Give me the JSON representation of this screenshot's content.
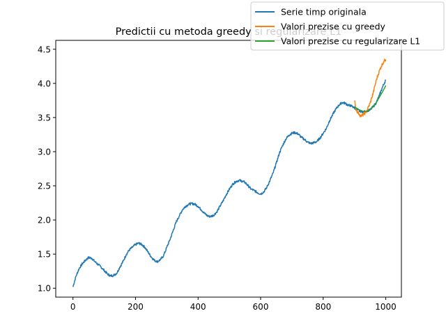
{
  "chart_data": {
    "type": "line",
    "title": "Predictii cu metoda greedy si regularizare L1",
    "xlabel": "",
    "ylabel": "",
    "xlim": [
      -55,
      1050
    ],
    "ylim": [
      0.87,
      4.63
    ],
    "x_ticks": [
      0,
      200,
      400,
      600,
      800,
      1000
    ],
    "y_ticks": [
      1.0,
      1.5,
      2.0,
      2.5,
      3.0,
      3.5,
      4.0,
      4.5
    ],
    "x_tick_labels": [
      "0",
      "200",
      "400",
      "600",
      "800",
      "1000"
    ],
    "y_tick_labels": [
      "1.0",
      "1.5",
      "2.0",
      "2.5",
      "3.0",
      "3.5",
      "4.0",
      "4.5"
    ],
    "grid": false,
    "legend_position": "top-right (outside, overlapping title)",
    "series": [
      {
        "name": "Serie timp originala",
        "color": "#1f77b4",
        "x": [
          0,
          10,
          20,
          30,
          40,
          50,
          60,
          70,
          80,
          90,
          100,
          110,
          120,
          130,
          140,
          150,
          160,
          170,
          180,
          190,
          200,
          210,
          220,
          230,
          240,
          250,
          260,
          270,
          280,
          290,
          300,
          310,
          320,
          330,
          340,
          350,
          360,
          370,
          380,
          390,
          400,
          410,
          420,
          430,
          440,
          450,
          460,
          470,
          480,
          490,
          500,
          510,
          520,
          530,
          540,
          550,
          560,
          570,
          580,
          590,
          600,
          610,
          620,
          630,
          640,
          650,
          660,
          670,
          680,
          690,
          700,
          710,
          720,
          730,
          740,
          750,
          760,
          770,
          780,
          790,
          800,
          810,
          820,
          830,
          840,
          850,
          860,
          870,
          880,
          890,
          900,
          910,
          920,
          930,
          940,
          950,
          960,
          970,
          980,
          990,
          1000
        ],
        "y": [
          1.02,
          1.18,
          1.29,
          1.36,
          1.41,
          1.45,
          1.44,
          1.39,
          1.35,
          1.31,
          1.26,
          1.21,
          1.18,
          1.19,
          1.22,
          1.31,
          1.39,
          1.49,
          1.56,
          1.6,
          1.64,
          1.66,
          1.64,
          1.6,
          1.53,
          1.46,
          1.41,
          1.39,
          1.42,
          1.48,
          1.6,
          1.71,
          1.84,
          1.97,
          2.06,
          2.15,
          2.2,
          2.23,
          2.24,
          2.23,
          2.2,
          2.15,
          2.1,
          2.06,
          2.05,
          2.07,
          2.12,
          2.2,
          2.28,
          2.37,
          2.45,
          2.52,
          2.56,
          2.58,
          2.57,
          2.55,
          2.5,
          2.45,
          2.43,
          2.4,
          2.38,
          2.41,
          2.48,
          2.58,
          2.69,
          2.83,
          2.98,
          3.09,
          3.18,
          3.24,
          3.27,
          3.28,
          3.26,
          3.21,
          3.18,
          3.14,
          3.12,
          3.13,
          3.15,
          3.2,
          3.27,
          3.34,
          3.45,
          3.54,
          3.62,
          3.68,
          3.72,
          3.71,
          3.68,
          3.67,
          3.64,
          3.61,
          3.59,
          3.58,
          3.6,
          3.61,
          3.66,
          3.72,
          3.83,
          3.95,
          4.05
        ]
      },
      {
        "name": "Valori prezise cu greedy",
        "color": "#ff7f0e",
        "x": [
          900,
          905,
          910,
          915,
          920,
          925,
          930,
          935,
          940,
          945,
          950,
          955,
          960,
          965,
          970,
          975,
          980,
          985,
          990,
          995,
          1000
        ],
        "y": [
          3.75,
          3.62,
          3.58,
          3.55,
          3.52,
          3.53,
          3.55,
          3.57,
          3.6,
          3.66,
          3.71,
          3.79,
          3.86,
          3.96,
          4.05,
          4.12,
          4.19,
          4.24,
          4.29,
          4.33,
          4.35
        ]
      },
      {
        "name": "Valori prezise cu regularizare L1",
        "color": "#2ca02c",
        "x": [
          900,
          910,
          920,
          930,
          940,
          950,
          960,
          970,
          980,
          990,
          1000
        ],
        "y": [
          3.66,
          3.63,
          3.6,
          3.59,
          3.59,
          3.62,
          3.66,
          3.72,
          3.8,
          3.88,
          3.97
        ]
      }
    ]
  }
}
